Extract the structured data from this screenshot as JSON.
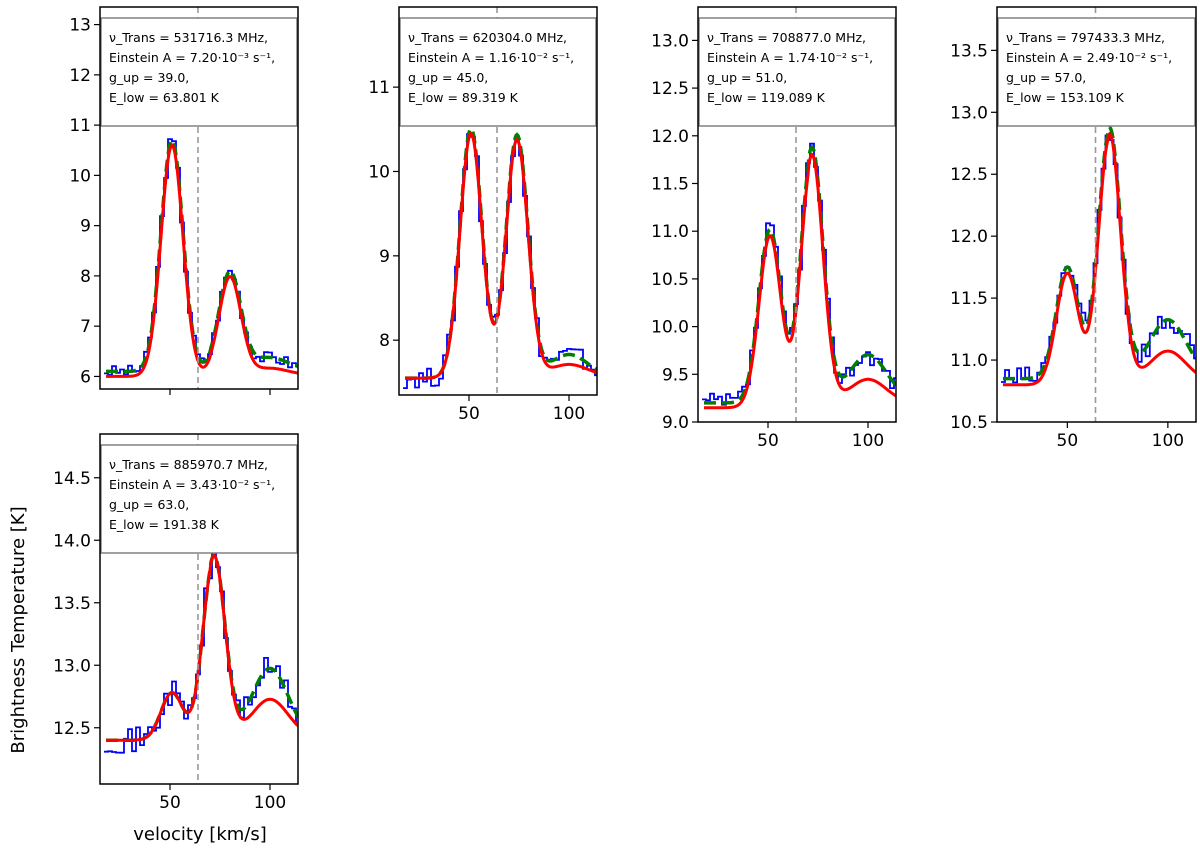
{
  "figure": {
    "ylabel": "Brightness Temperature [K]",
    "xlabel": "velocity [km/s]"
  },
  "style": {
    "obs_color": "#0000ff",
    "fit_color": "#ff0000",
    "model_color": "#008000",
    "vline_color": "#999999",
    "box_edge": "#808080"
  },
  "chart_data": [
    {
      "type": "line",
      "info": [
        "ν_Trans = 531716.3 MHz,",
        "Einstein A = 7.20·10⁻³ s⁻¹,",
        "g_up = 39.0,",
        "E_low = 63.801 K"
      ],
      "xlim": [
        15,
        114
      ],
      "ylim": [
        5.75,
        13.35
      ],
      "xticks": [
        50,
        100
      ],
      "yticks": [
        6,
        7,
        8,
        9,
        10,
        11,
        12,
        13
      ],
      "vline": 64,
      "show_xticklabels": false,
      "peak1": {
        "v": 51,
        "h": 10.6
      },
      "peak2": {
        "v": 80,
        "h": 7.95
      },
      "baseline": 6.0,
      "dip": 5.9,
      "wing_end": 6.05,
      "green_mod": {
        "scale": 1.0,
        "wing": 0.25,
        "base_off": 0.1
      },
      "obs_noise": 0.12
    },
    {
      "type": "line",
      "info": [
        "ν_Trans = 620304.0 MHz,",
        "Einstein A = 1.16·10⁻² s⁻¹,",
        "g_up = 45.0,",
        "E_low = 89.319 K"
      ],
      "xlim": [
        15,
        114
      ],
      "ylim": [
        7.35,
        11.95
      ],
      "xticks": [
        50,
        100
      ],
      "yticks": [
        8,
        9,
        10,
        11
      ],
      "vline": 64,
      "show_xticklabels": true,
      "peak1": {
        "v": 51,
        "h": 10.45
      },
      "peak2": {
        "v": 74,
        "h": 10.35
      },
      "baseline": 7.55,
      "dip": 7.45,
      "wing_end": 7.6,
      "green_mod": {
        "scale": 1.02,
        "wing": 0.25,
        "base_off": 0.0
      },
      "obs_noise": 0.12
    },
    {
      "type": "line",
      "info": [
        "ν_Trans = 708877.0 MHz,",
        "Einstein A = 1.74·10⁻² s⁻¹,",
        "g_up = 51.0,",
        "E_low = 119.089 K"
      ],
      "xlim": [
        15,
        114
      ],
      "ylim": [
        9.0,
        13.35
      ],
      "xticks": [
        50,
        100
      ],
      "yticks": [
        9.0,
        9.5,
        10.0,
        10.5,
        11.0,
        11.5,
        12.0,
        12.5,
        13.0
      ],
      "vline": 64,
      "show_xticklabels": true,
      "peak1": {
        "v": 51,
        "h": 10.95
      },
      "peak2": {
        "v": 72,
        "h": 11.75
      },
      "baseline": 9.15,
      "dip": 9.1,
      "wing_end": 9.25,
      "green_mod": {
        "scale": 1.01,
        "wing": 0.45,
        "base_off": 0.05
      },
      "obs_noise": 0.1
    },
    {
      "type": "line",
      "info": [
        "ν_Trans = 797433.3 MHz,",
        "Einstein A = 2.49·10⁻² s⁻¹,",
        "g_up = 57.0,",
        "E_low = 153.109 K"
      ],
      "xlim": [
        15,
        114
      ],
      "ylim": [
        10.5,
        13.85
      ],
      "xticks": [
        50,
        100
      ],
      "yticks": [
        10.5,
        11.0,
        11.5,
        12.0,
        12.5,
        13.0,
        13.5
      ],
      "vline": 64,
      "show_xticklabels": true,
      "peak1": {
        "v": 50,
        "h": 11.7
      },
      "peak2": {
        "v": 71,
        "h": 12.8
      },
      "baseline": 10.8,
      "dip": 10.85,
      "wing_end": 10.85,
      "green_mod": {
        "scale": 1.0,
        "wing": 0.45,
        "base_off": 0.05
      },
      "obs_noise": 0.1
    },
    {
      "type": "line",
      "info": [
        "ν_Trans = 885970.7 MHz,",
        "Einstein A = 3.43·10⁻² s⁻¹,",
        "g_up = 63.0,",
        "E_low = 191.38 K"
      ],
      "xlim": [
        15,
        114
      ],
      "ylim": [
        12.05,
        14.85
      ],
      "xticks": [
        50,
        100
      ],
      "yticks": [
        12.5,
        13.0,
        13.5,
        14.0,
        14.5
      ],
      "vline": 64,
      "show_xticklabels": true,
      "peak1": {
        "v": 51,
        "h": 12.78
      },
      "peak2": {
        "v": 72,
        "h": 13.85
      },
      "baseline": 12.4,
      "dip": 12.42,
      "wing_end": 12.45,
      "green_mod": {
        "scale": 1.0,
        "wing": 0.55,
        "base_off": 0.0
      },
      "obs_noise": 0.1
    }
  ]
}
